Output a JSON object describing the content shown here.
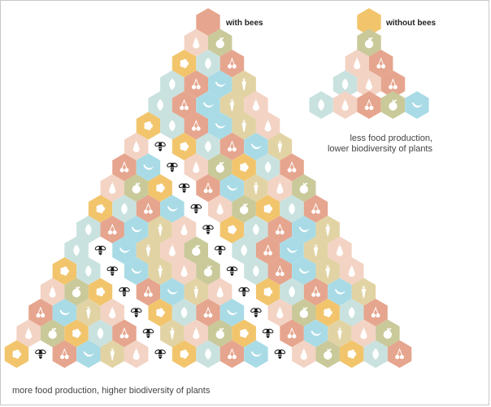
{
  "labels": {
    "with_bees": "with bees",
    "without_bees": "without bees",
    "less_line1": "less food production,",
    "less_line2": "lower biodiversity of plants",
    "more": "more food production, higher biodiversity of plants"
  },
  "colors": {
    "light_blue": "#a9dbe6",
    "peach": "#f3d3c4",
    "yellow": "#f2c56d",
    "salmon": "#e6a58e",
    "tan": "#e2d3a4",
    "olive": "#c9c99a",
    "pale_teal": "#c9e2df",
    "bee": "#151515"
  },
  "icons": {
    "cell_icons": [
      "apple",
      "pear",
      "carrot",
      "banana",
      "cherry",
      "leaf",
      "flower"
    ],
    "pollinator": "bee"
  }
}
